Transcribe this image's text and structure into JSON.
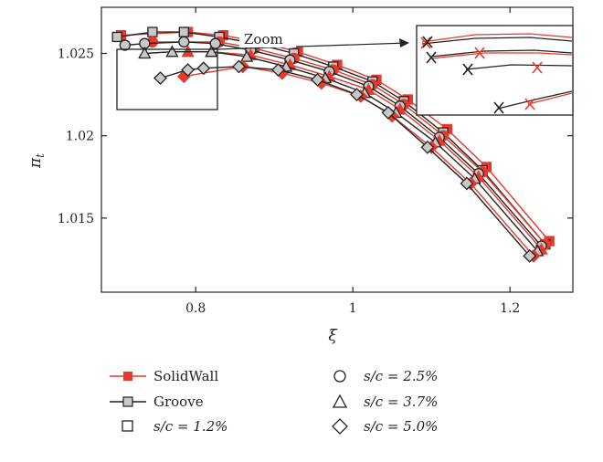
{
  "chart_data": {
    "type": "line",
    "xlabel": "ξ",
    "ylabel": "π",
    "ylabel_sub": "t",
    "xlim": [
      0.68,
      1.28
    ],
    "ylim": [
      1.0105,
      1.0278
    ],
    "x_ticks": [
      0.8,
      1.0,
      1.2
    ],
    "x_tick_labels": [
      "0.8",
      "1",
      "1.2"
    ],
    "y_ticks": [
      1.015,
      1.02,
      1.025
    ],
    "y_tick_labels": [
      "1.015",
      "1.02",
      "1.025"
    ],
    "zoom_label": "Zoom",
    "colors": {
      "solidwall": "#e8392c",
      "groove": "#222222",
      "marker_fill": "#c8c8c8"
    },
    "series": [
      {
        "name": "SolidWall",
        "marker": "square",
        "configuration": "s/c = 1.2%",
        "x": [
          0.705,
          0.79,
          0.835,
          0.88,
          0.93,
          0.98,
          1.03,
          1.07,
          1.12,
          1.17,
          1.25
        ],
        "y": [
          1.0261,
          1.0263,
          1.0261,
          1.0257,
          1.0251,
          1.0243,
          1.0234,
          1.0222,
          1.0204,
          1.0181,
          1.0136
        ]
      },
      {
        "name": "Groove",
        "marker": "square",
        "configuration": "s/c = 1.2%",
        "x": [
          0.7,
          0.745,
          0.785,
          0.83,
          0.875,
          0.925,
          0.975,
          1.025,
          1.065,
          1.115,
          1.165,
          1.245
        ],
        "y": [
          1.026,
          1.0263,
          1.0263,
          1.026,
          1.0256,
          1.025,
          1.0242,
          1.0233,
          1.0221,
          1.0202,
          1.0179,
          1.0134
        ]
      },
      {
        "name": "SolidWall",
        "marker": "circle",
        "configuration": "s/c = 2.5%",
        "x": [
          0.745,
          0.83,
          0.875,
          0.925,
          0.975,
          1.025,
          1.065,
          1.115,
          1.165,
          1.245
        ],
        "y": [
          1.0257,
          1.0257,
          1.0253,
          1.0247,
          1.024,
          1.0231,
          1.0219,
          1.02,
          1.0178,
          1.0134
        ]
      },
      {
        "name": "Groove",
        "marker": "circle",
        "configuration": "s/c = 2.5%",
        "x": [
          0.71,
          0.735,
          0.785,
          0.825,
          0.87,
          0.92,
          0.97,
          1.02,
          1.06,
          1.11,
          1.16,
          1.24
        ],
        "y": [
          1.0255,
          1.0256,
          1.0257,
          1.0256,
          1.0252,
          1.0246,
          1.0239,
          1.023,
          1.0218,
          1.0199,
          1.0177,
          1.0133
        ]
      },
      {
        "name": "SolidWall",
        "marker": "triangle",
        "configuration": "s/c = 3.7%",
        "x": [
          0.79,
          0.82,
          0.87,
          0.92,
          0.97,
          1.02,
          1.06,
          1.11,
          1.16,
          1.24
        ],
        "y": [
          1.0251,
          1.0251,
          1.0249,
          1.0243,
          1.0236,
          1.0228,
          1.0216,
          1.0197,
          1.0175,
          1.0131
        ]
      },
      {
        "name": "Groove",
        "marker": "triangle",
        "configuration": "s/c = 3.7%",
        "x": [
          0.735,
          0.77,
          0.82,
          0.865,
          0.915,
          0.965,
          1.015,
          1.055,
          1.105,
          1.155,
          1.235
        ],
        "y": [
          1.025,
          1.0251,
          1.0251,
          1.0248,
          1.0242,
          1.0235,
          1.0226,
          1.0214,
          1.0196,
          1.0174,
          1.013
        ]
      },
      {
        "name": "SolidWall",
        "marker": "diamond",
        "configuration": "s/c = 5.0%",
        "x": [
          0.785,
          0.86,
          0.91,
          0.96,
          1.01,
          1.05,
          1.1,
          1.15,
          1.23
        ],
        "y": [
          1.0236,
          1.0242,
          1.0238,
          1.0232,
          1.0224,
          1.0212,
          1.0193,
          1.0171,
          1.0127
        ]
      },
      {
        "name": "Groove",
        "marker": "diamond",
        "configuration": "s/c = 5.0%",
        "x": [
          0.755,
          0.79,
          0.81,
          0.855,
          0.905,
          0.955,
          1.005,
          1.045,
          1.095,
          1.145,
          1.225
        ],
        "y": [
          1.0235,
          1.024,
          1.0241,
          1.0242,
          1.024,
          1.0234,
          1.0225,
          1.0214,
          1.0193,
          1.0171,
          1.0127
        ]
      }
    ]
  },
  "legend": {
    "items": [
      {
        "kind": "line-red",
        "label": "SolidWall"
      },
      {
        "kind": "line-black",
        "label": "Groove"
      },
      {
        "kind": "square",
        "label": "s/c = 1.2%"
      },
      {
        "kind": "circle",
        "label": "s/c = 2.5%"
      },
      {
        "kind": "triangle",
        "label": "s/c = 3.7%"
      },
      {
        "kind": "diamond",
        "label": "s/c = 5.0%"
      }
    ]
  }
}
